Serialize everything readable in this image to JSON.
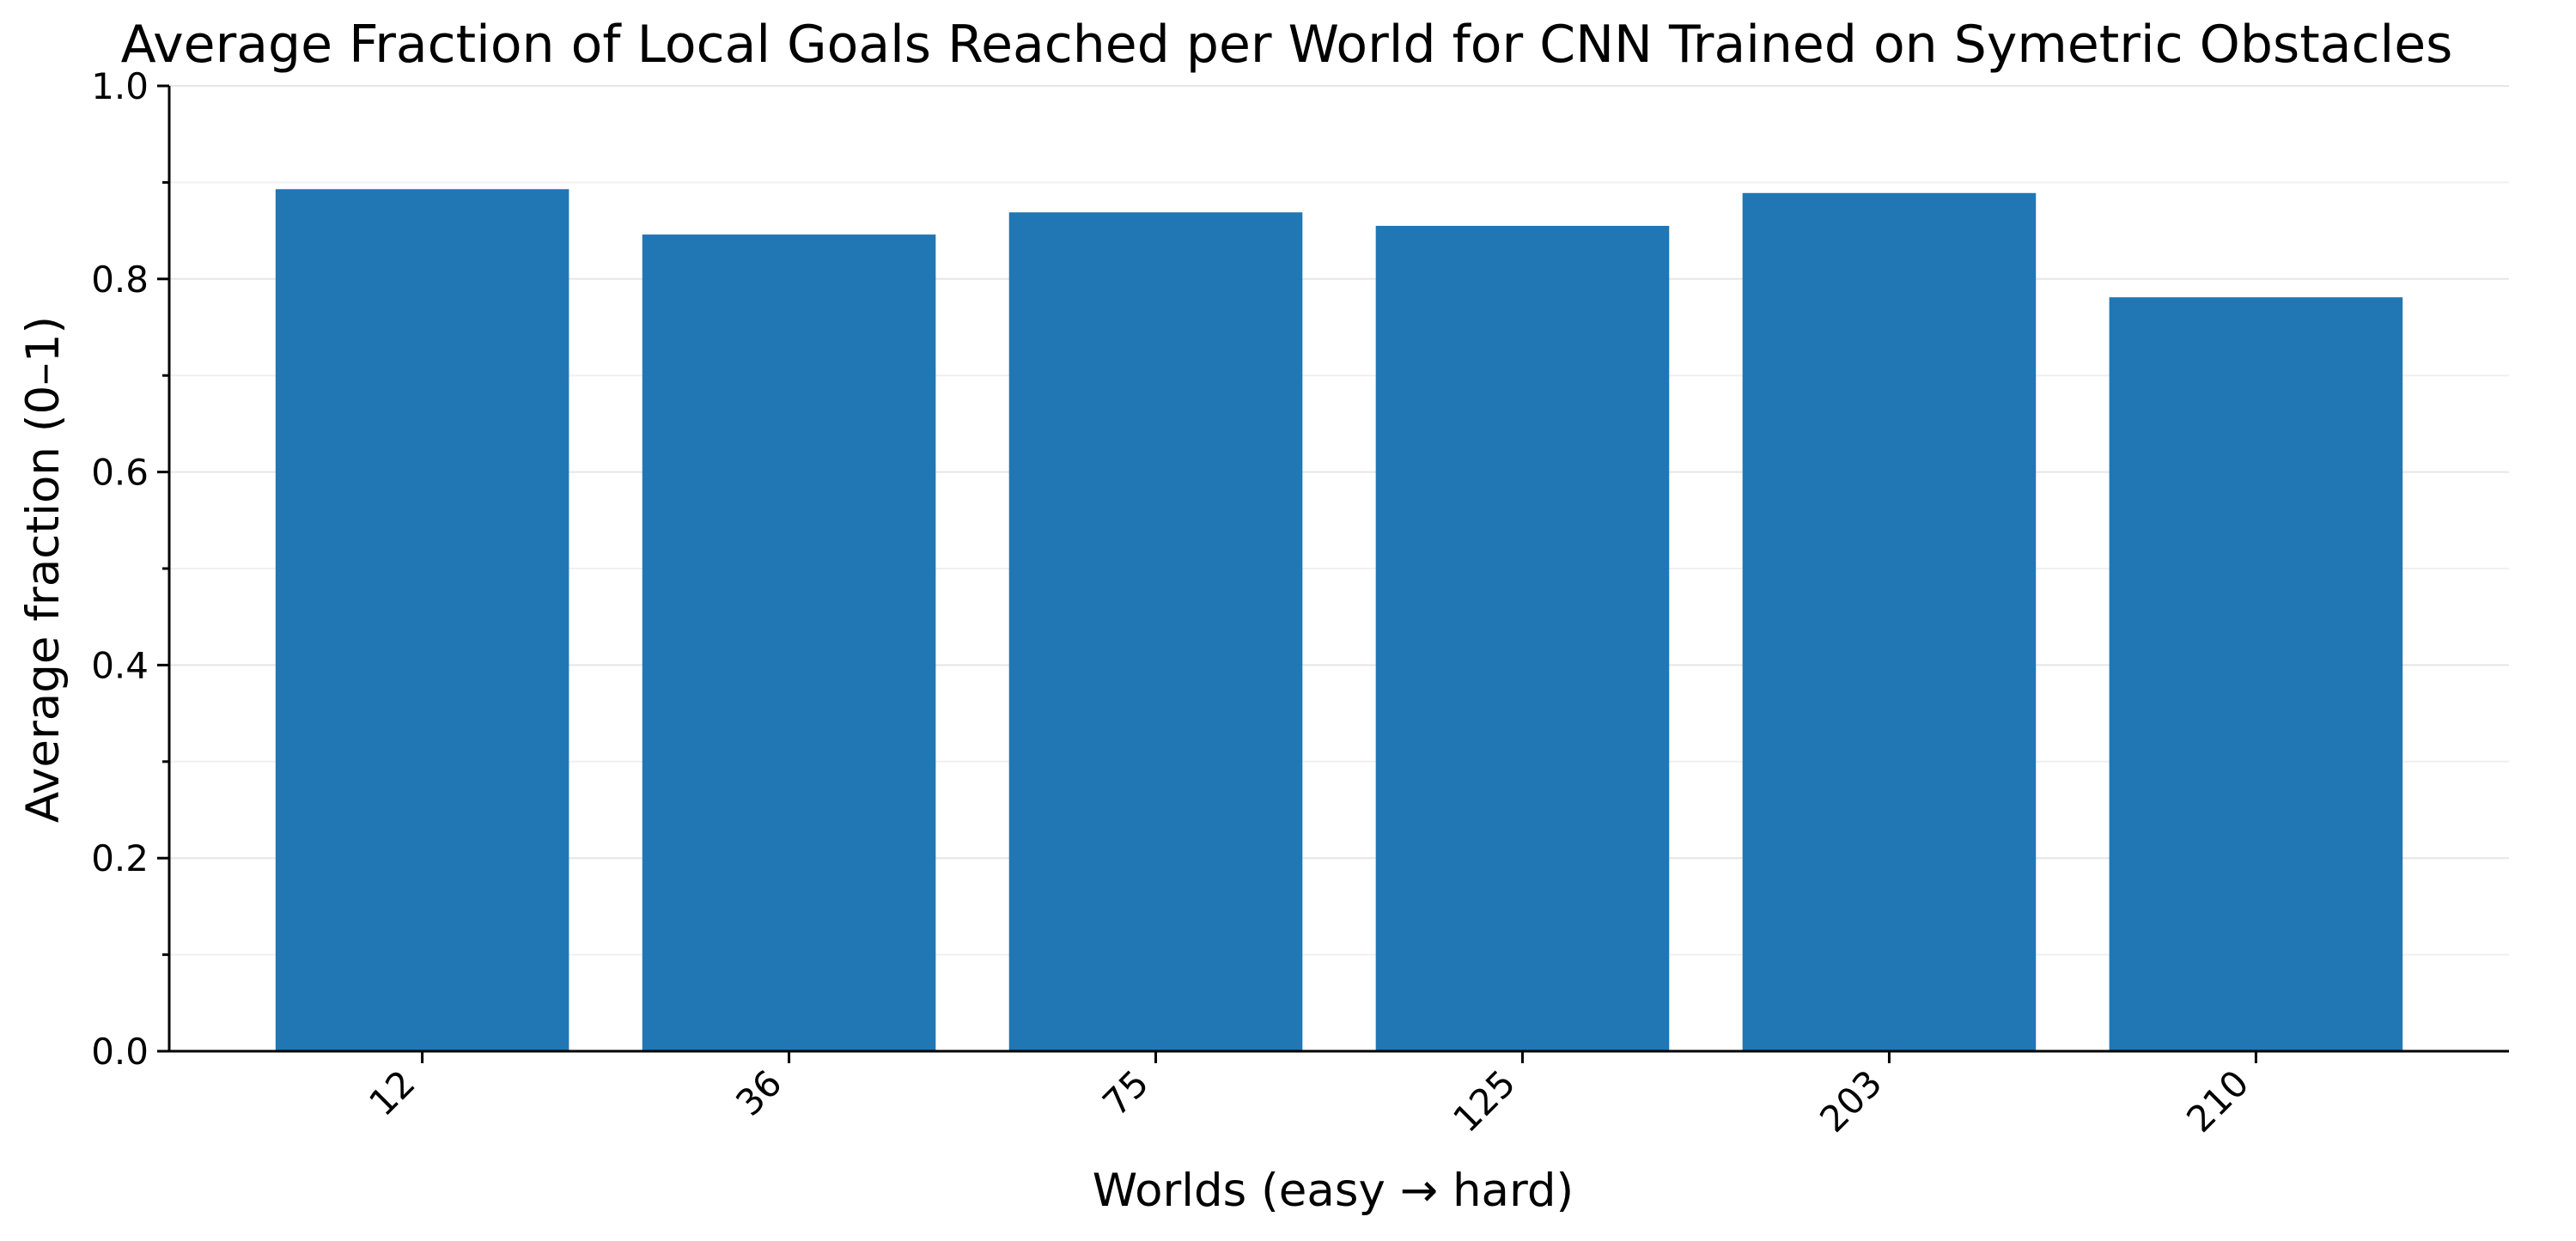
{
  "chart_data": {
    "type": "bar",
    "title": "Average Fraction of Local Goals Reached per World for CNN Trained on Symetric Obstacles",
    "xlabel": "Worlds (easy → hard)",
    "ylabel": "Average fraction (0–1)",
    "categories": [
      "12",
      "36",
      "75",
      "125",
      "203",
      "210"
    ],
    "values": [
      0.893,
      0.846,
      0.869,
      0.855,
      0.889,
      0.781
    ],
    "ylim": [
      0,
      1.0
    ],
    "yticks": [
      "0.0",
      "0.2",
      "0.4",
      "0.6",
      "0.8",
      "1.0"
    ],
    "grid": "horizontal",
    "legend": "none",
    "bar_color": "#2077b4"
  }
}
